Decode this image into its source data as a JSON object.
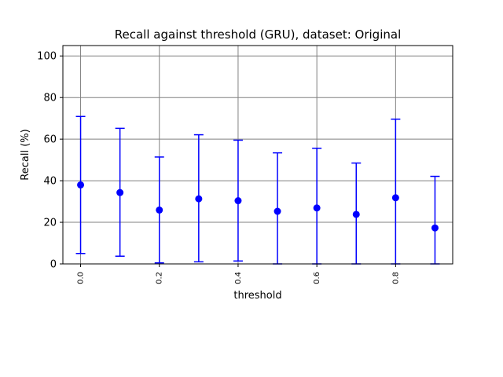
{
  "chart_data": {
    "type": "scatter",
    "title": "Recall against threshold (GRU), dataset: Original",
    "xlabel": "threshold",
    "ylabel": "Recall (%)",
    "xlim": [
      -0.045,
      0.945
    ],
    "ylim": [
      0,
      105
    ],
    "xticks": [
      0.0,
      0.2,
      0.4,
      0.6,
      0.8
    ],
    "xtick_labels": [
      "0.0",
      "0.2",
      "0.4",
      "0.6",
      "0.8"
    ],
    "yticks": [
      0,
      20,
      40,
      60,
      80,
      100
    ],
    "ytick_labels": [
      "0",
      "20",
      "40",
      "60",
      "80",
      "100"
    ],
    "grid": true,
    "color": "#0000ff",
    "series": [
      {
        "x": [
          0.0,
          0.1,
          0.2,
          0.3,
          0.4,
          0.5,
          0.6,
          0.7,
          0.8,
          0.9
        ],
        "y": [
          38.0,
          34.3,
          25.9,
          31.3,
          30.4,
          25.3,
          26.9,
          23.8,
          31.8,
          17.3
        ],
        "error_low": [
          5.0,
          3.7,
          0.5,
          1.0,
          1.4,
          0.0,
          0.0,
          0.0,
          0.0,
          0.0
        ],
        "error_high": [
          70.9,
          65.2,
          51.4,
          62.1,
          59.5,
          53.4,
          55.6,
          48.5,
          69.6,
          42.1
        ]
      }
    ]
  }
}
